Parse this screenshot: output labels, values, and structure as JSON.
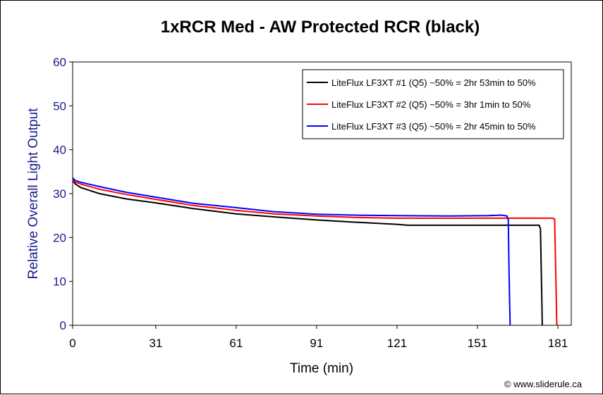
{
  "chart_data": {
    "type": "line",
    "title": "1xRCR Med - AW Protected RCR (black)",
    "xlabel": "Time (min)",
    "ylabel": "Relative Overall Light Output",
    "xlim": [
      0,
      186
    ],
    "ylim": [
      0,
      60
    ],
    "x_ticks": [
      0,
      31,
      61,
      91,
      121,
      151,
      181
    ],
    "y_ticks": [
      0,
      10,
      20,
      30,
      40,
      50,
      60
    ],
    "grid": false,
    "legend_position": "top-right",
    "series": [
      {
        "name": "LiteFlux LF3XT #1 (Q5) ~50% = 2hr 53min to 50%",
        "color": "#000000",
        "points": [
          [
            0,
            33.0
          ],
          [
            1,
            32.2
          ],
          [
            3,
            31.4
          ],
          [
            10,
            30.0
          ],
          [
            20,
            28.8
          ],
          [
            31,
            27.9
          ],
          [
            45,
            26.6
          ],
          [
            61,
            25.4
          ],
          [
            75,
            24.7
          ],
          [
            91,
            24.0
          ],
          [
            105,
            23.5
          ],
          [
            121,
            23.0
          ],
          [
            125,
            22.8
          ],
          [
            140,
            22.8
          ],
          [
            160,
            22.8
          ],
          [
            174,
            22.8
          ],
          [
            174.5,
            22.0
          ],
          [
            174.9,
            10.0
          ],
          [
            175.2,
            0
          ]
        ]
      },
      {
        "name": "LiteFlux LF3XT #2 (Q5) ~50% = 3hr 1min to 50%",
        "color": "#ff0000",
        "points": [
          [
            0,
            33.2
          ],
          [
            1,
            32.6
          ],
          [
            3,
            32.2
          ],
          [
            10,
            31.0
          ],
          [
            20,
            29.8
          ],
          [
            31,
            28.7
          ],
          [
            45,
            27.3
          ],
          [
            61,
            26.2
          ],
          [
            75,
            25.4
          ],
          [
            91,
            24.9
          ],
          [
            105,
            24.6
          ],
          [
            121,
            24.4
          ],
          [
            140,
            24.4
          ],
          [
            160,
            24.4
          ],
          [
            179,
            24.4
          ],
          [
            179.8,
            24.2
          ],
          [
            180.2,
            12.0
          ],
          [
            180.6,
            0
          ]
        ]
      },
      {
        "name": "LiteFlux LF3XT #3 (Q5) ~50% = 2hr 45min to 50%",
        "color": "#0000ff",
        "points": [
          [
            0,
            33.6
          ],
          [
            1,
            33.0
          ],
          [
            3,
            32.6
          ],
          [
            10,
            31.6
          ],
          [
            20,
            30.3
          ],
          [
            31,
            29.2
          ],
          [
            45,
            27.8
          ],
          [
            61,
            26.8
          ],
          [
            75,
            25.9
          ],
          [
            91,
            25.3
          ],
          [
            105,
            25.1
          ],
          [
            121,
            25.0
          ],
          [
            140,
            24.9
          ],
          [
            155,
            25.0
          ],
          [
            160,
            25.1
          ],
          [
            162,
            24.9
          ],
          [
            162.5,
            24.0
          ],
          [
            162.8,
            12.0
          ],
          [
            163.2,
            0
          ]
        ]
      }
    ]
  },
  "credit": "© www.sliderule.ca",
  "colors": {
    "ylabel": "#1a1a8c",
    "tick": "#1a1a8c",
    "xtick": "#000000"
  }
}
